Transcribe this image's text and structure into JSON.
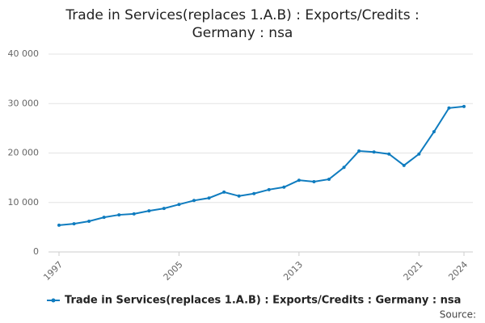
{
  "chart_data": {
    "type": "line",
    "title": "Trade in Services(replaces 1.A.B) : Exports/Credits : Germany : nsa",
    "x": [
      1997,
      1998,
      1999,
      2000,
      2001,
      2002,
      2003,
      2004,
      2005,
      2006,
      2007,
      2008,
      2009,
      2010,
      2011,
      2012,
      2013,
      2014,
      2015,
      2016,
      2017,
      2018,
      2019,
      2020,
      2021,
      2022,
      2023,
      2024
    ],
    "series": [
      {
        "name": "Trade in Services(replaces 1.A.B) : Exports/Credits : Germany : nsa",
        "color": "#0f7cbf",
        "values": [
          5400,
          5700,
          6200,
          7000,
          7500,
          7700,
          8300,
          8800,
          9600,
          10400,
          10900,
          12100,
          11300,
          11800,
          12600,
          13100,
          14500,
          14200,
          14700,
          17100,
          20400,
          20200,
          19800,
          17500,
          19800,
          24300,
          29100,
          29400
        ]
      }
    ],
    "xlim": [
      1997,
      2024
    ],
    "xticks": [
      1997,
      2005,
      2013,
      2021,
      2024
    ],
    "ylim": [
      0,
      40000
    ],
    "yticks": [
      0,
      {
        "value": 10000,
        "label": "10 000"
      },
      {
        "value": 20000,
        "label": "20 000"
      },
      {
        "value": 30000,
        "label": "30 000"
      },
      {
        "value": 40000,
        "label": "40 000"
      }
    ],
    "grid": true,
    "legend": "bottom",
    "source": "Source:"
  }
}
